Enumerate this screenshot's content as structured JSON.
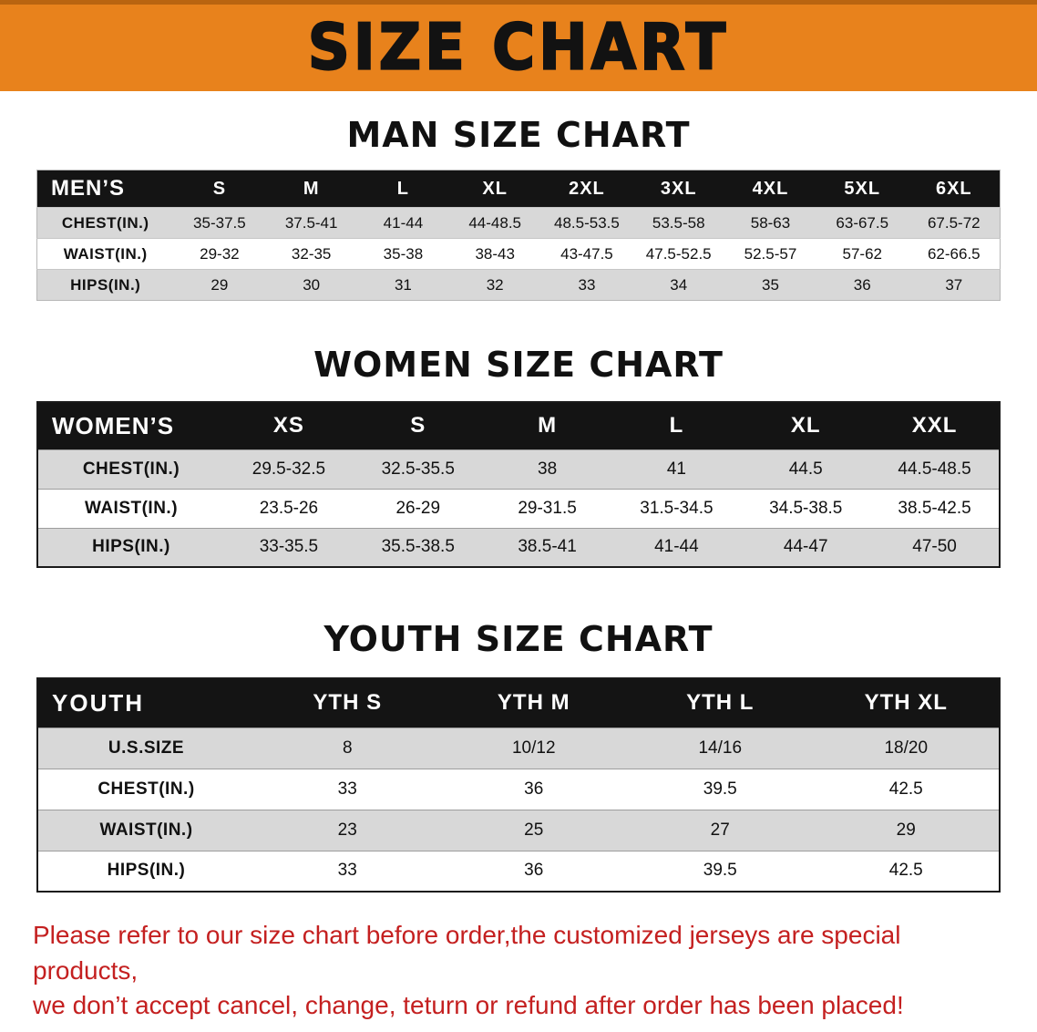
{
  "banner": {
    "title": "SIZE CHART"
  },
  "colors": {
    "banner_bg": "#e8821c",
    "banner_edge": "#b96410",
    "banner_text": "#121212",
    "header_bg": "#141414",
    "header_text": "#ffffff",
    "stripe_bg": "#d8d8d8",
    "disclaimer_text": "#c42020"
  },
  "sections": [
    {
      "id": "men",
      "heading": "MAN SIZE CHART",
      "table": {
        "header": [
          "MEN’S",
          "S",
          "M",
          "L",
          "XL",
          "2XL",
          "3XL",
          "4XL",
          "5XL",
          "6XL"
        ],
        "rows": [
          [
            "CHEST(IN.)",
            "35-37.5",
            "37.5-41",
            "41-44",
            "44-48.5",
            "48.5-53.5",
            "53.5-58",
            "58-63",
            "63-67.5",
            "67.5-72"
          ],
          [
            "WAIST(IN.)",
            "29-32",
            "32-35",
            "35-38",
            "38-43",
            "43-47.5",
            "47.5-52.5",
            "52.5-57",
            "57-62",
            "62-66.5"
          ],
          [
            "HIPS(IN.)",
            "29",
            "30",
            "31",
            "32",
            "33",
            "34",
            "35",
            "36",
            "37"
          ]
        ]
      }
    },
    {
      "id": "women",
      "heading": "WOMEN SIZE CHART",
      "table": {
        "header": [
          "WOMEN’S",
          "XS",
          "S",
          "M",
          "L",
          "XL",
          "XXL"
        ],
        "rows": [
          [
            "CHEST(IN.)",
            "29.5-32.5",
            "32.5-35.5",
            "38",
            "41",
            "44.5",
            "44.5-48.5"
          ],
          [
            "WAIST(IN.)",
            "23.5-26",
            "26-29",
            "29-31.5",
            "31.5-34.5",
            "34.5-38.5",
            "38.5-42.5"
          ],
          [
            "HIPS(IN.)",
            "33-35.5",
            "35.5-38.5",
            "38.5-41",
            "41-44",
            "44-47",
            "47-50"
          ]
        ]
      }
    },
    {
      "id": "youth",
      "heading": "YOUTH SIZE CHART",
      "table": {
        "header": [
          "YOUTH",
          "YTH S",
          "YTH M",
          "YTH L",
          "YTH XL"
        ],
        "rows": [
          [
            "U.S.SIZE",
            "8",
            "10/12",
            "14/16",
            "18/20"
          ],
          [
            "CHEST(IN.)",
            "33",
            "36",
            "39.5",
            "42.5"
          ],
          [
            "WAIST(IN.)",
            "23",
            "25",
            "27",
            "29"
          ],
          [
            "HIPS(IN.)",
            "33",
            "36",
            "39.5",
            "42.5"
          ]
        ]
      }
    }
  ],
  "disclaimer": {
    "line1": "Please refer to our size chart before order,the customized jerseys are special products,",
    "line2": "we don’t accept cancel, change, teturn or refund after order has been placed!"
  }
}
